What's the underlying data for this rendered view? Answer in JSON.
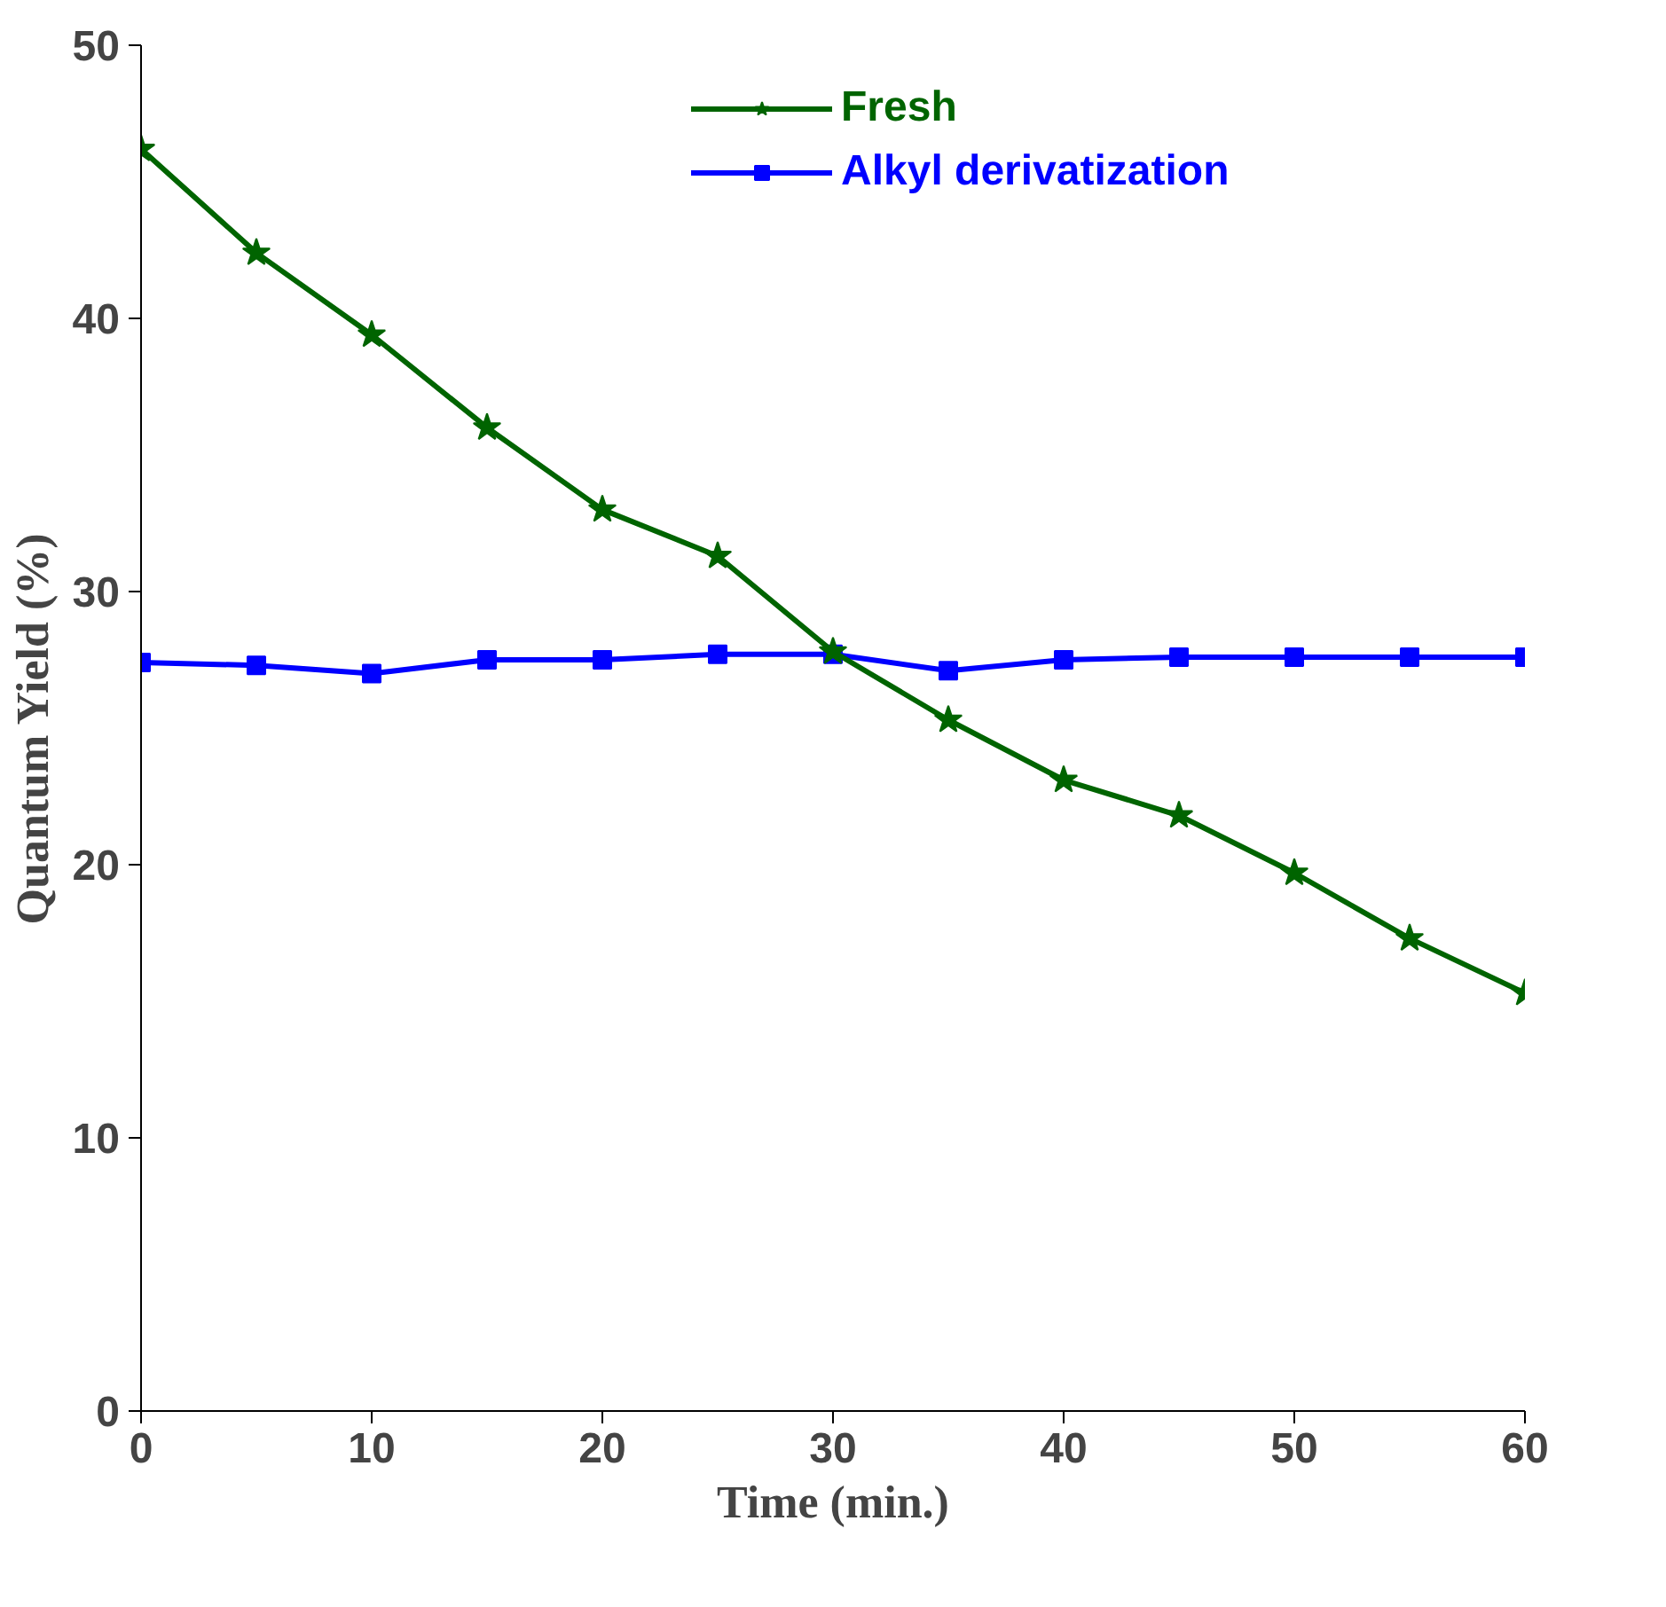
{
  "chart_data": {
    "type": "line",
    "xlabel": "Time (min.)",
    "ylabel": "Quantum Yield (%)",
    "x": [
      0,
      5,
      10,
      15,
      20,
      25,
      30,
      35,
      40,
      45,
      50,
      55,
      60
    ],
    "series": [
      {
        "name": "Fresh",
        "color": "#006400",
        "marker": "star",
        "values": [
          46.2,
          42.4,
          39.4,
          36.0,
          33.0,
          31.3,
          27.8,
          25.3,
          23.1,
          21.8,
          19.7,
          17.3,
          15.3
        ]
      },
      {
        "name": "Alkyl derivatization",
        "color": "#0000ff",
        "marker": "square",
        "values": [
          27.4,
          27.3,
          27.0,
          27.5,
          27.5,
          27.7,
          27.7,
          27.1,
          27.5,
          27.6,
          27.6,
          27.6,
          27.6
        ]
      }
    ],
    "xlim": [
      0,
      60
    ],
    "xticks": [
      0,
      10,
      20,
      30,
      40,
      50,
      60
    ],
    "ylim": [
      0,
      50
    ],
    "yticks": [
      0,
      10,
      20,
      30,
      40,
      50
    ],
    "grid": false,
    "legend": "top right",
    "line_style": "solid"
  }
}
